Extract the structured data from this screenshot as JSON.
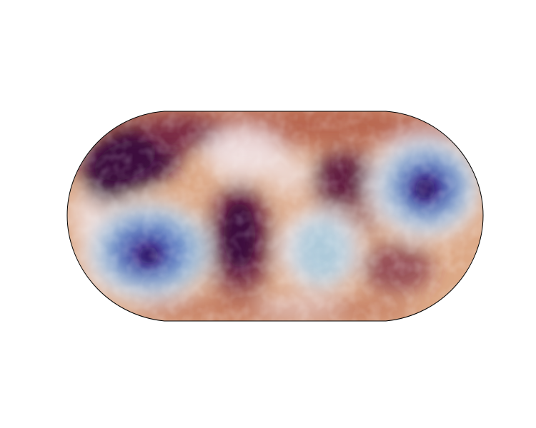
{
  "map": {
    "projection": "equal-earth",
    "colormap": "twilight_shifted",
    "background": "#ffffff",
    "outline_color": "#000000",
    "colors": {
      "deep_purple": "#3d0d3d",
      "maroon": "#7b2b45",
      "rust": "#b8664f",
      "tan": "#dda987",
      "pale": "#f2e8ec",
      "light_blue": "#a6c6d8",
      "blue": "#5b7fc9",
      "indigo": "#4a2b92",
      "dark_indigo": "#2c1160"
    },
    "features": [
      {
        "name": "upper-left-dark-patch",
        "tone": "deep_purple"
      },
      {
        "name": "center-dark-patch",
        "tone": "deep_purple"
      },
      {
        "name": "upper-right-dark-patch",
        "tone": "deep_purple"
      },
      {
        "name": "lower-left-blue-patch",
        "tone": "indigo"
      },
      {
        "name": "center-pale-blue-patch",
        "tone": "light_blue"
      },
      {
        "name": "right-blue-patch",
        "tone": "indigo"
      }
    ]
  }
}
